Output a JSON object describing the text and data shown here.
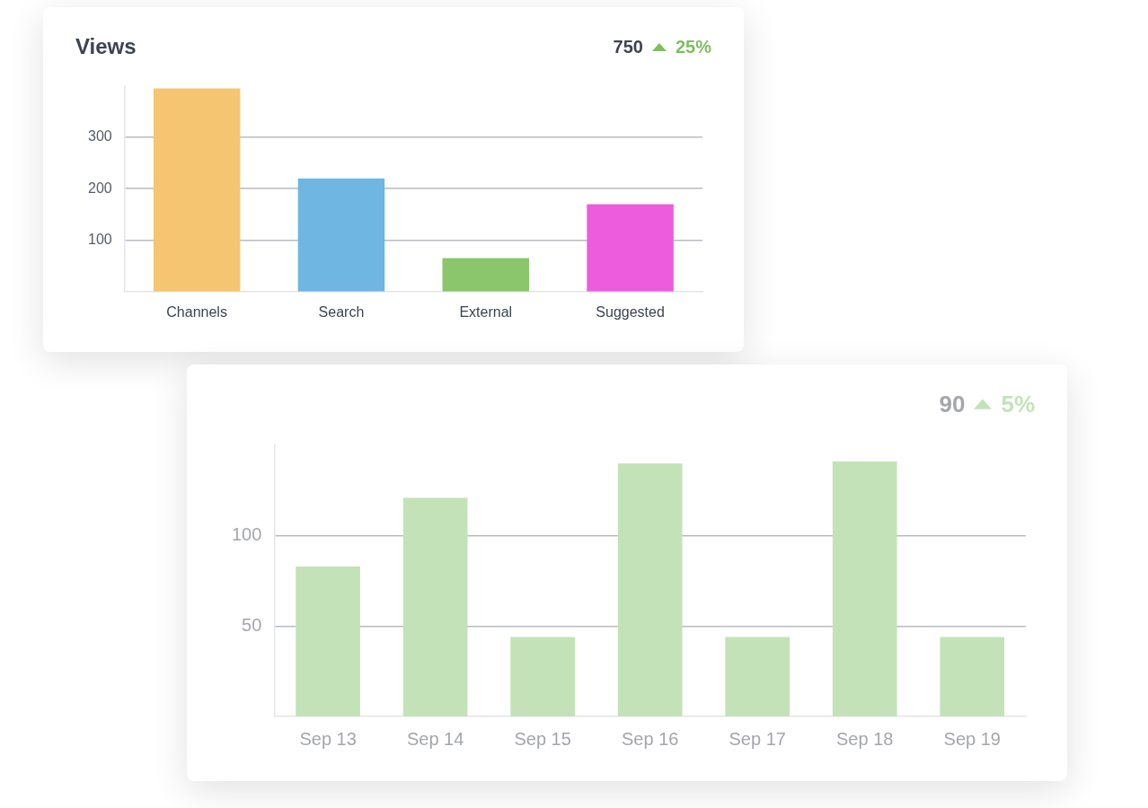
{
  "chart_data": [
    {
      "type": "bar",
      "title": "Views",
      "annotations": [
        "750",
        "25%"
      ],
      "categories": [
        "Channels",
        "Search",
        "External",
        "Suggested"
      ],
      "values": [
        395,
        220,
        65,
        170
      ],
      "colors": [
        "#f5c571",
        "#6fb6e2",
        "#8bc56c",
        "#ec5cdc"
      ],
      "ylim": [
        0,
        400
      ],
      "yticks": [
        100,
        200,
        300
      ],
      "grid": "y"
    },
    {
      "type": "bar",
      "annotations": [
        "90",
        "5%"
      ],
      "categories": [
        "Sep 13",
        "Sep 14",
        "Sep 15",
        "Sep 16",
        "Sep 17",
        "Sep 18",
        "Sep 19"
      ],
      "values": [
        83,
        121,
        44,
        140,
        44,
        141,
        44
      ],
      "color": "#c4e2b8",
      "ylim": [
        0,
        150
      ],
      "yticks": [
        50,
        100
      ],
      "grid": "y"
    }
  ]
}
